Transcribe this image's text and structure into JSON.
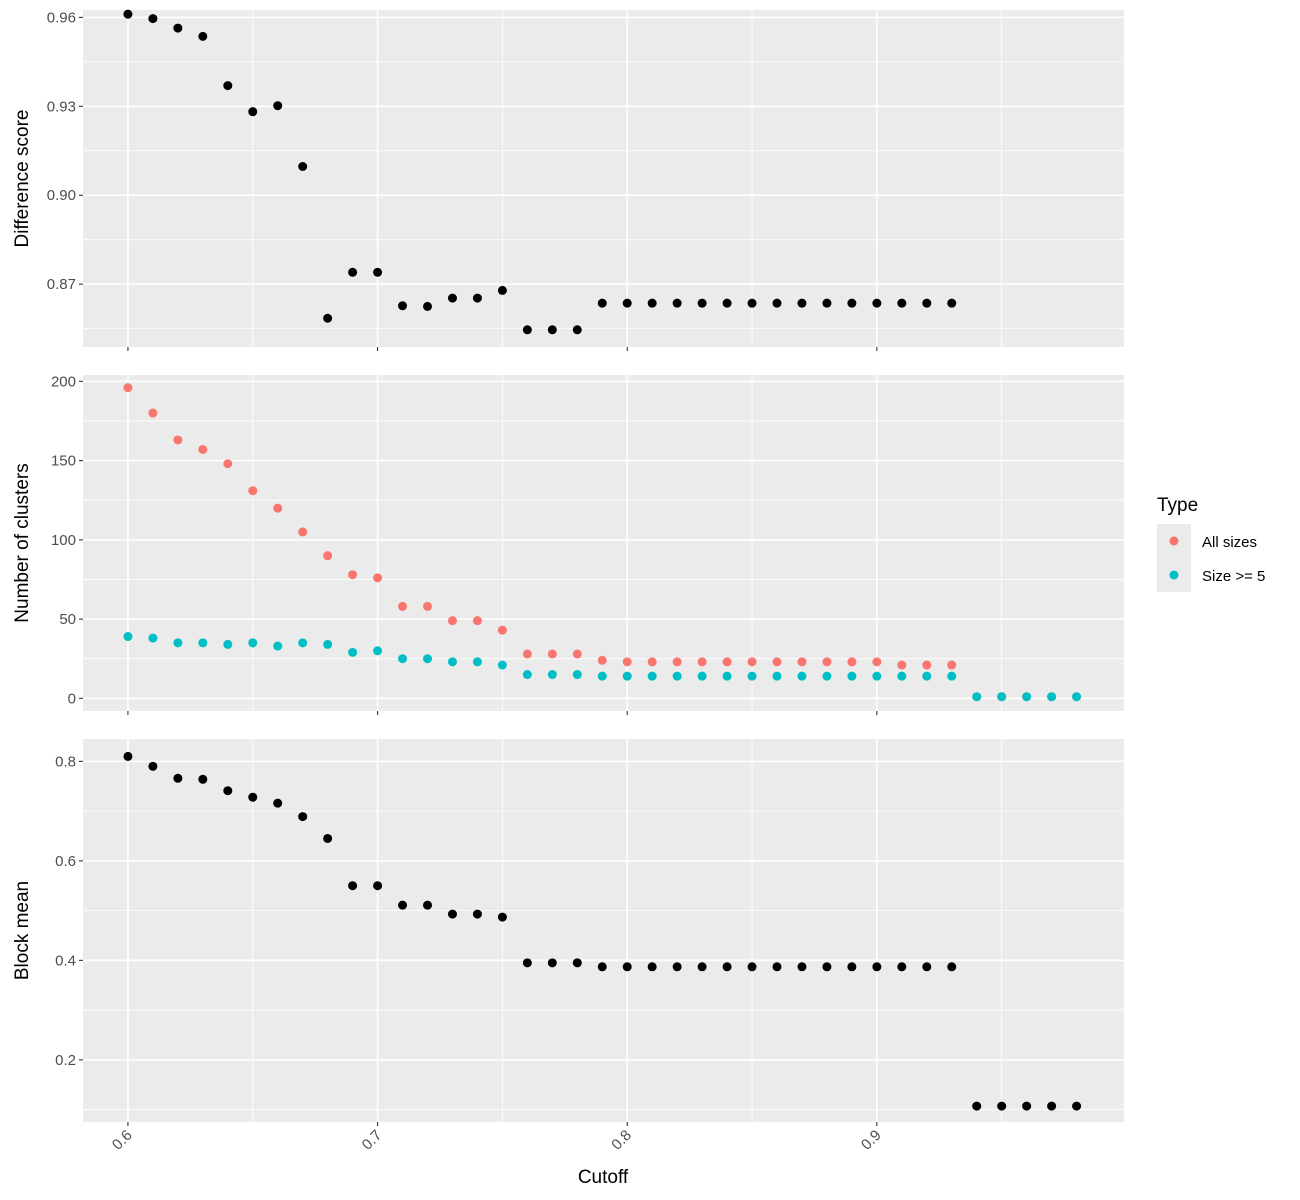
{
  "chart_data": {
    "type": "scatter",
    "shared_x": {
      "label": "Cutoff",
      "ticks": [
        0.6,
        0.7,
        0.8,
        0.9
      ],
      "tick_labels": [
        "0.6",
        "0.7",
        "0.8",
        "0.9"
      ],
      "range": [
        0.582,
        0.999
      ]
    },
    "legend": {
      "title": "Type",
      "placement": "right",
      "entries": [
        {
          "name": "All sizes",
          "color": "#F8766D"
        },
        {
          "name": "Size >= 5",
          "color": "#00BFC4"
        }
      ]
    },
    "panels": [
      {
        "ylabel": "Difference score",
        "ylim": [
          0.8488,
          0.9625
        ],
        "yticks": [
          0.87,
          0.9,
          0.93,
          0.96
        ],
        "ytick_labels": [
          "0.87",
          "0.90",
          "0.93",
          "0.96"
        ],
        "grid": true,
        "series": [
          {
            "color": "#000000",
            "points": [
              [
                0.6,
                0.9611
              ],
              [
                0.61,
                0.9596
              ],
              [
                0.62,
                0.9564
              ],
              [
                0.63,
                0.9536
              ],
              [
                0.64,
                0.937
              ],
              [
                0.65,
                0.9282
              ],
              [
                0.66,
                0.9302
              ],
              [
                0.67,
                0.9097
              ],
              [
                0.68,
                0.8585
              ],
              [
                0.69,
                0.874
              ],
              [
                0.7,
                0.874
              ],
              [
                0.71,
                0.8627
              ],
              [
                0.72,
                0.8625
              ],
              [
                0.73,
                0.8653
              ],
              [
                0.74,
                0.8653
              ],
              [
                0.75,
                0.8679
              ],
              [
                0.76,
                0.8546
              ],
              [
                0.77,
                0.8546
              ],
              [
                0.78,
                0.8546
              ],
              [
                0.79,
                0.8636
              ],
              [
                0.8,
                0.8636
              ],
              [
                0.81,
                0.8636
              ],
              [
                0.82,
                0.8636
              ],
              [
                0.83,
                0.8636
              ],
              [
                0.84,
                0.8636
              ],
              [
                0.85,
                0.8636
              ],
              [
                0.86,
                0.8636
              ],
              [
                0.87,
                0.8636
              ],
              [
                0.88,
                0.8636
              ],
              [
                0.89,
                0.8636
              ],
              [
                0.9,
                0.8636
              ],
              [
                0.91,
                0.8636
              ],
              [
                0.92,
                0.8636
              ],
              [
                0.93,
                0.8636
              ]
            ]
          }
        ]
      },
      {
        "ylabel": "Number of clusters",
        "ylim": [
          -8,
          204
        ],
        "yticks": [
          0,
          50,
          100,
          150,
          200
        ],
        "ytick_labels": [
          "0",
          "50",
          "100",
          "150",
          "200"
        ],
        "grid": true,
        "series": [
          {
            "name": "All sizes",
            "color": "#F8766D",
            "points": [
              [
                0.6,
                196
              ],
              [
                0.61,
                180
              ],
              [
                0.62,
                163
              ],
              [
                0.63,
                157
              ],
              [
                0.64,
                148
              ],
              [
                0.65,
                131
              ],
              [
                0.66,
                120
              ],
              [
                0.67,
                105
              ],
              [
                0.68,
                90
              ],
              [
                0.69,
                78
              ],
              [
                0.7,
                76
              ],
              [
                0.71,
                58
              ],
              [
                0.72,
                58
              ],
              [
                0.73,
                49
              ],
              [
                0.74,
                49
              ],
              [
                0.75,
                43
              ],
              [
                0.76,
                28
              ],
              [
                0.77,
                28
              ],
              [
                0.78,
                28
              ],
              [
                0.79,
                24
              ],
              [
                0.8,
                23
              ],
              [
                0.81,
                23
              ],
              [
                0.82,
                23
              ],
              [
                0.83,
                23
              ],
              [
                0.84,
                23
              ],
              [
                0.85,
                23
              ],
              [
                0.86,
                23
              ],
              [
                0.87,
                23
              ],
              [
                0.88,
                23
              ],
              [
                0.89,
                23
              ],
              [
                0.9,
                23
              ],
              [
                0.91,
                21
              ],
              [
                0.92,
                21
              ],
              [
                0.93,
                21
              ],
              [
                0.94,
                1
              ],
              [
                0.95,
                1
              ],
              [
                0.96,
                1
              ],
              [
                0.97,
                1
              ],
              [
                0.98,
                1
              ]
            ]
          },
          {
            "name": "Size >= 5",
            "color": "#00BFC4",
            "points": [
              [
                0.6,
                39
              ],
              [
                0.61,
                38
              ],
              [
                0.62,
                35
              ],
              [
                0.63,
                35
              ],
              [
                0.64,
                34
              ],
              [
                0.65,
                35
              ],
              [
                0.66,
                33
              ],
              [
                0.67,
                35
              ],
              [
                0.68,
                34
              ],
              [
                0.69,
                29
              ],
              [
                0.7,
                30
              ],
              [
                0.71,
                25
              ],
              [
                0.72,
                25
              ],
              [
                0.73,
                23
              ],
              [
                0.74,
                23
              ],
              [
                0.75,
                21
              ],
              [
                0.76,
                15
              ],
              [
                0.77,
                15
              ],
              [
                0.78,
                15
              ],
              [
                0.79,
                14
              ],
              [
                0.8,
                14
              ],
              [
                0.81,
                14
              ],
              [
                0.82,
                14
              ],
              [
                0.83,
                14
              ],
              [
                0.84,
                14
              ],
              [
                0.85,
                14
              ],
              [
                0.86,
                14
              ],
              [
                0.87,
                14
              ],
              [
                0.88,
                14
              ],
              [
                0.89,
                14
              ],
              [
                0.9,
                14
              ],
              [
                0.91,
                14
              ],
              [
                0.92,
                14
              ],
              [
                0.93,
                14
              ],
              [
                0.94,
                1
              ],
              [
                0.95,
                1
              ],
              [
                0.96,
                1
              ],
              [
                0.97,
                1
              ],
              [
                0.98,
                1
              ]
            ]
          }
        ]
      },
      {
        "ylabel": "Block mean",
        "ylim": [
          0.075,
          0.845
        ],
        "yticks": [
          0.2,
          0.4,
          0.6,
          0.8
        ],
        "ytick_labels": [
          "0.2",
          "0.4",
          "0.6",
          "0.8"
        ],
        "grid": true,
        "series": [
          {
            "color": "#000000",
            "points": [
              [
                0.6,
                0.81
              ],
              [
                0.61,
                0.79
              ],
              [
                0.62,
                0.766
              ],
              [
                0.63,
                0.764
              ],
              [
                0.64,
                0.741
              ],
              [
                0.65,
                0.728
              ],
              [
                0.66,
                0.716
              ],
              [
                0.67,
                0.689
              ],
              [
                0.68,
                0.645
              ],
              [
                0.69,
                0.55
              ],
              [
                0.7,
                0.55
              ],
              [
                0.71,
                0.511
              ],
              [
                0.72,
                0.511
              ],
              [
                0.73,
                0.493
              ],
              [
                0.74,
                0.493
              ],
              [
                0.75,
                0.487
              ],
              [
                0.76,
                0.395
              ],
              [
                0.77,
                0.395
              ],
              [
                0.78,
                0.395
              ],
              [
                0.79,
                0.387
              ],
              [
                0.8,
                0.387
              ],
              [
                0.81,
                0.387
              ],
              [
                0.82,
                0.387
              ],
              [
                0.83,
                0.387
              ],
              [
                0.84,
                0.387
              ],
              [
                0.85,
                0.387
              ],
              [
                0.86,
                0.387
              ],
              [
                0.87,
                0.387
              ],
              [
                0.88,
                0.387
              ],
              [
                0.89,
                0.387
              ],
              [
                0.9,
                0.387
              ],
              [
                0.91,
                0.387
              ],
              [
                0.92,
                0.387
              ],
              [
                0.93,
                0.387
              ],
              [
                0.94,
                0.107
              ],
              [
                0.95,
                0.107
              ],
              [
                0.96,
                0.107
              ],
              [
                0.97,
                0.107
              ],
              [
                0.98,
                0.107
              ]
            ]
          }
        ]
      }
    ]
  }
}
